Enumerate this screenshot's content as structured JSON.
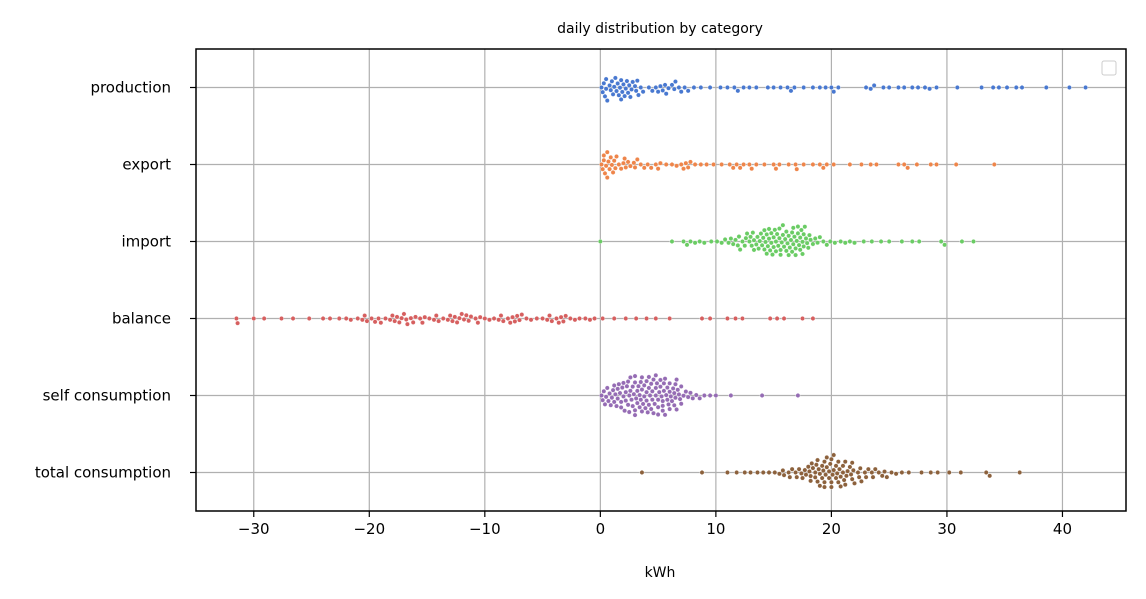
{
  "chart_data": {
    "type": "scatter",
    "subtype": "swarm",
    "title": "daily distribution by category",
    "xlabel": "kWh",
    "ylabel": "",
    "xlim": [
      -35,
      45.5
    ],
    "xticks": [
      -30,
      -20,
      -10,
      0,
      10,
      20,
      30,
      40
    ],
    "xtick_labels": [
      "−30",
      "−20",
      "−10",
      "0",
      "10",
      "20",
      "30",
      "40"
    ],
    "grid": true,
    "legend": {
      "placement": "top-right",
      "entries": []
    },
    "categories": [
      "production",
      "export",
      "import",
      "balance",
      "self consumption",
      "total consumption"
    ],
    "series": [
      {
        "name": "production",
        "color": "#4878d0",
        "values": [
          0.1,
          0.2,
          0.3,
          0.4,
          0.5,
          0.6,
          0.8,
          0.9,
          1.0,
          1.2,
          1.3,
          1.4,
          1.5,
          1.6,
          1.7,
          1.8,
          1.9,
          2.0,
          2.1,
          2.2,
          2.3,
          2.4,
          2.5,
          2.6,
          2.8,
          3.0,
          3.1,
          3.3,
          3.5,
          3.7,
          4.2,
          4.5,
          4.8,
          5.0,
          5.2,
          5.4,
          5.6,
          5.9,
          6.2,
          6.5,
          6.8,
          7.0,
          7.3,
          7.6,
          8.1,
          8.7,
          9.5,
          10.4,
          11.0,
          11.6,
          12.4,
          12.9,
          13.5,
          14.5,
          15.0,
          15.6,
          16.2,
          16.8,
          17.6,
          18.4,
          19.0,
          19.5,
          20.2,
          20.6,
          23.0,
          23.4,
          24.5,
          25.0,
          25.8,
          26.3,
          27.0,
          27.5,
          28.5,
          29.1,
          30.9,
          33.0,
          34.5,
          35.2,
          36.0,
          38.6,
          40.6,
          42.0,
          0.5,
          1.1,
          1.8,
          2.7,
          3.2,
          5.7,
          6.4,
          11.9,
          16.5,
          20.0,
          23.7,
          28.1,
          34.0,
          36.5
        ]
      },
      {
        "name": "export",
        "color": "#ee854a",
        "values": [
          0.1,
          0.2,
          0.3,
          0.4,
          0.5,
          0.6,
          0.7,
          0.8,
          0.9,
          1.0,
          1.1,
          1.2,
          1.4,
          1.6,
          1.8,
          2.0,
          2.2,
          2.4,
          2.6,
          2.9,
          3.2,
          3.5,
          3.8,
          4.1,
          4.4,
          4.8,
          5.2,
          5.7,
          6.2,
          6.6,
          7.0,
          7.4,
          7.8,
          8.2,
          8.7,
          9.2,
          9.8,
          10.5,
          11.2,
          11.8,
          12.4,
          12.9,
          13.5,
          14.2,
          15.0,
          15.5,
          16.3,
          17.0,
          17.6,
          18.4,
          19.0,
          19.6,
          20.2,
          21.6,
          22.6,
          23.4,
          23.9,
          25.8,
          26.6,
          27.4,
          28.6,
          29.1,
          30.8,
          34.1,
          0.3,
          0.6,
          1.3,
          2.1,
          3.0,
          5.0,
          7.2,
          12.1,
          15.2,
          19.3,
          26.3,
          7.6,
          11.5,
          13.1,
          16.9
        ]
      },
      {
        "name": "import",
        "color": "#6acc64",
        "values": [
          0.0,
          6.2,
          7.2,
          7.5,
          7.8,
          8.2,
          8.6,
          9.0,
          9.6,
          10.1,
          10.5,
          10.8,
          11.1,
          11.3,
          11.5,
          11.7,
          11.9,
          12.1,
          12.3,
          12.5,
          12.7,
          12.9,
          13.0,
          13.2,
          13.3,
          13.5,
          13.6,
          13.8,
          13.9,
          14.0,
          14.1,
          14.2,
          14.3,
          14.4,
          14.5,
          14.6,
          14.7,
          14.8,
          14.9,
          15.0,
          15.1,
          15.2,
          15.3,
          15.4,
          15.5,
          15.6,
          15.7,
          15.8,
          15.9,
          16.0,
          16.1,
          16.2,
          16.3,
          16.4,
          16.5,
          16.6,
          16.7,
          16.8,
          16.9,
          17.0,
          17.1,
          17.2,
          17.3,
          17.4,
          17.5,
          17.6,
          17.7,
          17.8,
          17.9,
          18.0,
          18.2,
          18.4,
          18.6,
          18.8,
          19.0,
          19.3,
          19.6,
          19.9,
          20.3,
          20.8,
          21.2,
          21.6,
          22.0,
          22.8,
          23.5,
          24.3,
          25.0,
          26.1,
          27.0,
          27.6,
          29.5,
          29.8,
          31.3,
          32.3,
          12.0,
          13.1,
          14.4,
          15.0,
          15.5,
          16.1,
          16.6,
          17.1,
          17.6,
          18.1,
          12.6,
          13.7,
          14.8,
          15.8,
          16.7,
          17.3,
          13.3,
          14.2,
          15.2,
          16.3,
          17.5,
          14.6,
          15.6,
          16.9
        ]
      },
      {
        "name": "balance",
        "color": "#d65f5f",
        "values": [
          -31.5,
          -30.0,
          -29.1,
          -27.6,
          -26.6,
          -25.2,
          -24.0,
          -23.4,
          -22.0,
          -21.6,
          -21.0,
          -20.6,
          -20.2,
          -19.8,
          -19.5,
          -19.0,
          -18.6,
          -18.2,
          -17.8,
          -17.4,
          -17.0,
          -16.7,
          -16.4,
          -16.0,
          -15.6,
          -15.2,
          -14.8,
          -14.4,
          -14.0,
          -13.6,
          -13.2,
          -12.8,
          -12.4,
          -12.0,
          -11.6,
          -11.2,
          -10.8,
          -10.4,
          -10.0,
          -9.6,
          -9.2,
          -8.8,
          -8.4,
          -8.0,
          -7.6,
          -7.2,
          -6.8,
          -6.4,
          -6.0,
          -5.5,
          -5.0,
          -4.6,
          -4.2,
          -3.8,
          -3.4,
          -3.0,
          -2.6,
          -2.2,
          -1.8,
          -1.3,
          -0.9,
          -0.5,
          0.2,
          1.2,
          2.2,
          3.1,
          4.0,
          4.8,
          6.0,
          8.8,
          9.5,
          11.0,
          11.7,
          12.3,
          14.7,
          15.3,
          15.9,
          17.5,
          18.4,
          -20.4,
          -19.2,
          -18.0,
          -17.2,
          -16.2,
          -15.4,
          -14.2,
          -13.0,
          -12.2,
          -11.4,
          -10.6,
          -8.6,
          -7.8,
          -7.0,
          -4.4,
          -3.6,
          -16.8,
          -11.8,
          -7.4,
          -3.2,
          -31.4,
          -22.6,
          -17.6,
          -12.6
        ]
      },
      {
        "name": "self consumption",
        "color": "#956cb4",
        "values": [
          0.1,
          0.2,
          0.3,
          0.4,
          0.5,
          0.6,
          0.7,
          0.8,
          0.9,
          1.0,
          1.1,
          1.2,
          1.3,
          1.4,
          1.5,
          1.6,
          1.7,
          1.8,
          1.9,
          2.0,
          2.1,
          2.2,
          2.3,
          2.4,
          2.5,
          2.6,
          2.7,
          2.8,
          2.9,
          3.0,
          3.1,
          3.2,
          3.3,
          3.4,
          3.5,
          3.6,
          3.7,
          3.8,
          3.9,
          4.0,
          4.1,
          4.2,
          4.3,
          4.4,
          4.5,
          4.6,
          4.7,
          4.8,
          4.9,
          5.0,
          5.1,
          5.2,
          5.3,
          5.4,
          5.5,
          5.6,
          5.7,
          5.8,
          5.9,
          6.0,
          6.1,
          6.2,
          6.3,
          6.4,
          6.5,
          6.6,
          6.7,
          6.8,
          6.9,
          7.0,
          7.2,
          7.4,
          7.6,
          7.8,
          8.0,
          8.3,
          8.6,
          9.0,
          9.5,
          10.0,
          11.3,
          14.0,
          17.1,
          1.5,
          2.0,
          2.5,
          3.0,
          3.5,
          4.0,
          4.5,
          5.0,
          5.5,
          6.0,
          6.5,
          7.0,
          1.2,
          1.8,
          2.4,
          3.0,
          3.6,
          4.2,
          4.8,
          5.4,
          6.0,
          6.6,
          2.2,
          2.8,
          3.4,
          4.0,
          4.6,
          5.2,
          5.8,
          6.4,
          2.6,
          3.2,
          3.8,
          4.4,
          5.0,
          5.6,
          3.0,
          3.6,
          4.2,
          4.8,
          5.4
        ]
      },
      {
        "name": "total consumption",
        "color": "#8c613c",
        "values": [
          3.6,
          8.8,
          11.0,
          11.8,
          12.5,
          13.0,
          13.6,
          14.1,
          14.6,
          15.1,
          15.5,
          15.9,
          16.3,
          16.6,
          16.9,
          17.2,
          17.5,
          17.8,
          18.0,
          18.2,
          18.4,
          18.6,
          18.8,
          19.0,
          19.2,
          19.4,
          19.6,
          19.8,
          20.0,
          20.2,
          20.4,
          20.6,
          20.8,
          21.0,
          21.2,
          21.4,
          21.6,
          21.8,
          22.0,
          22.3,
          22.6,
          22.9,
          23.2,
          23.5,
          23.8,
          24.1,
          24.4,
          24.8,
          25.2,
          25.6,
          26.1,
          26.7,
          27.8,
          28.6,
          29.2,
          30.2,
          31.2,
          33.4,
          33.7,
          36.3,
          17.0,
          17.7,
          18.3,
          18.9,
          19.5,
          20.1,
          20.7,
          21.3,
          21.9,
          22.5,
          17.4,
          18.1,
          18.7,
          19.3,
          19.9,
          20.5,
          21.1,
          21.7,
          22.4,
          18.2,
          18.8,
          19.4,
          20.0,
          20.6,
          21.2,
          21.8,
          18.6,
          19.2,
          19.8,
          20.4,
          21.0,
          19.0,
          19.6,
          20.2,
          20.8,
          19.4,
          20.0,
          16.4,
          23.0,
          24.6,
          15.8,
          23.6
        ]
      }
    ]
  }
}
